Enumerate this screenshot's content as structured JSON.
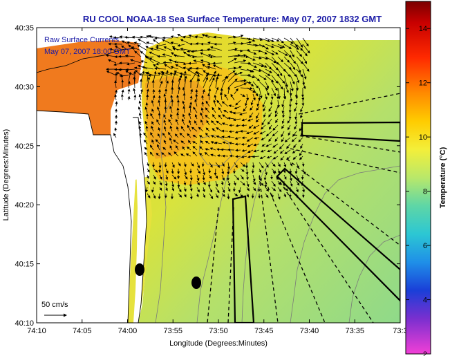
{
  "title": "RU COOL  NOAA-18  Sea Surface Temperature:  May 07, 2007 1832 GMT",
  "annotations": {
    "line1": "Raw Surface Currents",
    "line2": "May 07, 2007 18:00 GMT"
  },
  "scale_label": "50 cm/s",
  "colorbar": {
    "label": "Temperature (°C)",
    "min": 2,
    "max": 15,
    "ticks": [
      "14",
      "12",
      "10",
      "8",
      "6",
      "4",
      "2"
    ],
    "tick_values": [
      14,
      12,
      10,
      8,
      6,
      4,
      2
    ]
  },
  "map": {
    "xlabel": "Longitude (Degrees:Minutes)",
    "ylabel": "Latitude (Degrees:Minutes)",
    "x_ticks": [
      "74:10",
      "74:05",
      "74:00",
      "73:55",
      "73:50",
      "73:45",
      "73:40",
      "73:35",
      "73:3"
    ],
    "y_ticks": [
      "40:35",
      "40:30",
      "40:25",
      "40:20",
      "40:15",
      "40:10"
    ],
    "x_range_deg": [
      -74.1667,
      -73.5
    ],
    "y_range_deg": [
      40.1667,
      40.5833
    ]
  },
  "colors": {
    "warm": "#f07a1e",
    "yellow": "#e8e233",
    "green": "#9fd97a",
    "land": "#ffffff"
  },
  "markers": [
    {
      "name": "marker-west",
      "lon": -73.977,
      "lat": 40.245
    },
    {
      "name": "marker-east",
      "lon": -73.873,
      "lat": 40.226
    }
  ]
}
